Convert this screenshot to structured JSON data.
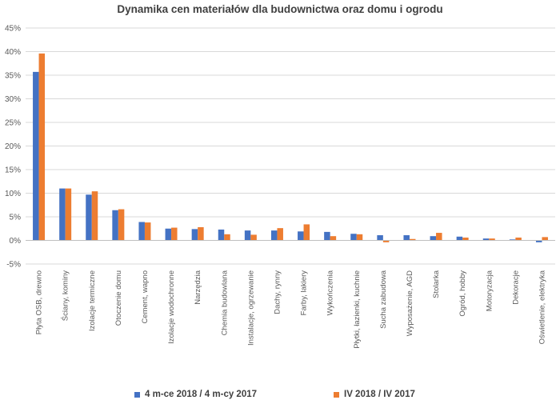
{
  "chart_data": {
    "type": "bar",
    "title": "Dynamika cen materiałów dla budownictwa oraz domu i ogrodu",
    "xlabel": "",
    "ylabel": "",
    "ylim": [
      -0.05,
      0.45
    ],
    "y_ticks": [
      "-5%",
      "0%",
      "5%",
      "10%",
      "15%",
      "20%",
      "25%",
      "30%",
      "35%",
      "40%",
      "45%"
    ],
    "grid": true,
    "legend_position": "bottom",
    "categories": [
      "Płyta OSB, drewno",
      "Ściany, kominy",
      "Izolacje termiczne",
      "Otoczenie domu",
      "Cement, wapno",
      "Izolacje wodochronne",
      "Narzędzia",
      "Chemia budowlana",
      "Instalacje, ogrzewanie",
      "Dachy, rynny",
      "Farby, lakiery",
      "Wykończenia",
      "Płytki, łazienki, kuchnie",
      "Sucha zabudowa",
      "Wyposażenie, AGD",
      "Stolarka",
      "Ogród, hobby",
      "Motoryzacja",
      "Dekoracje",
      "Oświetlenie, elektryka"
    ],
    "series": [
      {
        "name": "4 m-ce 2018 / 4 m-cy 2017",
        "color": "#4472C4",
        "values": [
          0.357,
          0.11,
          0.097,
          0.064,
          0.039,
          0.025,
          0.024,
          0.023,
          0.021,
          0.021,
          0.019,
          0.018,
          0.014,
          0.011,
          0.011,
          0.009,
          0.008,
          0.004,
          0.002,
          -0.004
        ]
      },
      {
        "name": "IV 2018 / IV 2017",
        "color": "#ED7D31",
        "values": [
          0.396,
          0.11,
          0.104,
          0.066,
          0.038,
          0.027,
          0.028,
          0.013,
          0.012,
          0.026,
          0.034,
          0.009,
          0.013,
          -0.004,
          0.003,
          0.016,
          0.006,
          0.004,
          0.006,
          0.007
        ]
      }
    ]
  }
}
